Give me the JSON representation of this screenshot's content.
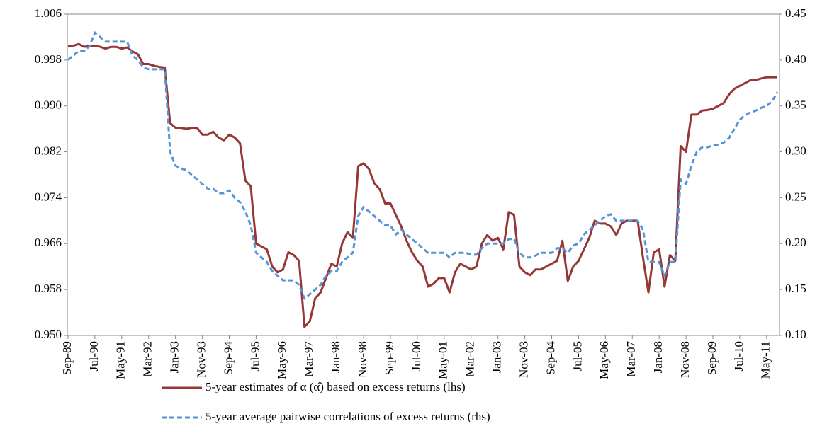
{
  "chart_data": {
    "type": "line",
    "categories": [
      "Sep-89",
      null,
      null,
      null,
      null,
      "Jul-90",
      null,
      null,
      null,
      null,
      "May-91",
      null,
      null,
      null,
      null,
      "Mar-92",
      null,
      null,
      null,
      null,
      "Jan-93",
      null,
      null,
      null,
      null,
      "Nov-93",
      null,
      null,
      null,
      null,
      "Sep-94",
      null,
      null,
      null,
      null,
      "Jul-95",
      null,
      null,
      null,
      null,
      "May-96",
      null,
      null,
      null,
      null,
      "Mar-97",
      null,
      null,
      null,
      null,
      "Jan-98",
      null,
      null,
      null,
      null,
      "Nov-98",
      null,
      null,
      null,
      null,
      "Sep-99",
      null,
      null,
      null,
      null,
      "Jul-00",
      null,
      null,
      null,
      null,
      "May-01",
      null,
      null,
      null,
      null,
      "Mar-02",
      null,
      null,
      null,
      null,
      "Jan-03",
      null,
      null,
      null,
      null,
      "Nov-03",
      null,
      null,
      null,
      null,
      "Sep-04",
      null,
      null,
      null,
      null,
      "Jul-05",
      null,
      null,
      null,
      null,
      "May-06",
      null,
      null,
      null,
      null,
      "Mar-07",
      null,
      null,
      null,
      null,
      "Jan-08",
      null,
      null,
      null,
      null,
      "Nov-08",
      null,
      null,
      null,
      null,
      "Sep-09",
      null,
      null,
      null,
      null,
      "Jul-10",
      null,
      null,
      null,
      null,
      "May-11",
      null,
      null
    ],
    "series": [
      {
        "name": "5-year estimates of α (α̂) based on excess returns (lhs)",
        "color": "#953735",
        "dash": false,
        "values": [
          1.0005,
          1.0005,
          1.0008,
          1.0003,
          1.0005,
          1.0005,
          1.0003,
          1.0,
          1.0003,
          1.0003,
          1.0,
          1.0002,
          0.9995,
          0.999,
          0.9973,
          0.9973,
          0.997,
          0.9968,
          0.9967,
          0.987,
          0.9862,
          0.9862,
          0.986,
          0.9862,
          0.9862,
          0.985,
          0.985,
          0.9855,
          0.9845,
          0.984,
          0.985,
          0.9845,
          0.9835,
          0.977,
          0.976,
          0.966,
          0.9655,
          0.965,
          0.962,
          0.961,
          0.9615,
          0.9645,
          0.964,
          0.963,
          0.9515,
          0.9525,
          0.9565,
          0.9575,
          0.96,
          0.9625,
          0.962,
          0.966,
          0.968,
          0.967,
          0.9795,
          0.98,
          0.979,
          0.9765,
          0.9755,
          0.973,
          0.973,
          0.971,
          0.969,
          0.9665,
          0.9645,
          0.963,
          0.962,
          0.9585,
          0.959,
          0.96,
          0.96,
          0.9575,
          0.961,
          0.9625,
          0.962,
          0.9615,
          0.962,
          0.966,
          0.9675,
          0.9665,
          0.967,
          0.965,
          0.9715,
          0.971,
          0.962,
          0.961,
          0.9605,
          0.9615,
          0.9615,
          0.962,
          0.9625,
          0.963,
          0.9665,
          0.9595,
          0.962,
          0.963,
          0.965,
          0.967,
          0.97,
          0.9695,
          0.9695,
          0.969,
          0.9675,
          0.9695,
          0.97,
          0.97,
          0.97,
          0.9635,
          0.9575,
          0.9645,
          0.965,
          0.9585,
          0.964,
          0.963,
          0.983,
          0.982,
          0.9885,
          0.9885,
          0.9892,
          0.9893,
          0.9895,
          0.99,
          0.9905,
          0.992,
          0.993,
          0.9935,
          0.994,
          0.9945,
          0.9945,
          0.9948,
          0.995,
          0.995,
          0.995
        ]
      },
      {
        "name": "5-year average pairwise correlations of excess returns (rhs)",
        "color": "#5593d7",
        "dash": true,
        "axis": "y2",
        "values": [
          0.4,
          0.405,
          0.41,
          0.41,
          0.415,
          0.43,
          0.425,
          0.42,
          0.42,
          0.42,
          0.42,
          0.42,
          0.405,
          0.4,
          0.392,
          0.39,
          0.39,
          0.39,
          0.39,
          0.3,
          0.285,
          0.282,
          0.28,
          0.275,
          0.27,
          0.265,
          0.26,
          0.26,
          0.255,
          0.255,
          0.258,
          0.25,
          0.245,
          0.235,
          0.22,
          0.19,
          0.185,
          0.18,
          0.17,
          0.165,
          0.16,
          0.16,
          0.16,
          0.155,
          0.14,
          0.145,
          0.15,
          0.155,
          0.165,
          0.17,
          0.17,
          0.18,
          0.185,
          0.19,
          0.23,
          0.24,
          0.235,
          0.23,
          0.225,
          0.22,
          0.22,
          0.21,
          0.215,
          0.21,
          0.205,
          0.2,
          0.195,
          0.19,
          0.19,
          0.19,
          0.19,
          0.185,
          0.19,
          0.19,
          0.19,
          0.188,
          0.188,
          0.195,
          0.2,
          0.2,
          0.2,
          0.2,
          0.205,
          0.205,
          0.19,
          0.185,
          0.185,
          0.187,
          0.19,
          0.19,
          0.19,
          0.195,
          0.195,
          0.19,
          0.198,
          0.2,
          0.21,
          0.215,
          0.22,
          0.225,
          0.23,
          0.232,
          0.225,
          0.225,
          0.225,
          0.225,
          0.225,
          0.215,
          0.18,
          0.18,
          0.18,
          0.165,
          0.18,
          0.18,
          0.27,
          0.265,
          0.285,
          0.3,
          0.305,
          0.305,
          0.307,
          0.308,
          0.31,
          0.315,
          0.325,
          0.335,
          0.34,
          0.343,
          0.345,
          0.348,
          0.35,
          0.355,
          0.365
        ]
      }
    ],
    "ylim": [
      0.95,
      1.006
    ],
    "yticks": [
      {
        "value": 0.95,
        "label": "0.950"
      },
      {
        "value": 0.958,
        "label": "0.958"
      },
      {
        "value": 0.966,
        "label": "0.966"
      },
      {
        "value": 0.974,
        "label": "0.974"
      },
      {
        "value": 0.982,
        "label": "0.982"
      },
      {
        "value": 0.99,
        "label": "0.990"
      },
      {
        "value": 0.998,
        "label": "0.998"
      },
      1.006
    ],
    "y2lim": [
      0.1,
      0.45
    ],
    "y2ticks": [
      {
        "value": 0.1,
        "label": "0.10"
      },
      0.15,
      {
        "value": 0.2,
        "label": "0.20"
      },
      0.25,
      {
        "value": 0.3,
        "label": "0.30"
      },
      0.35,
      {
        "value": 0.4,
        "label": "0.40"
      },
      0.45
    ],
    "grid": false,
    "legend": "bottom"
  }
}
